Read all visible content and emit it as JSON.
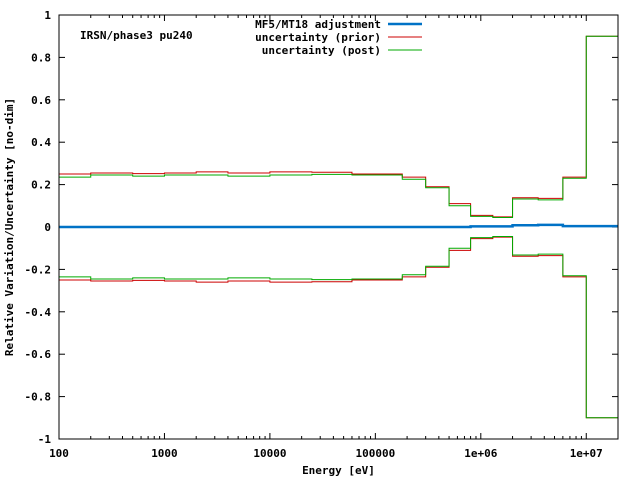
{
  "chart_data": {
    "type": "line",
    "step": true,
    "annotation": "IRSN/phase3 pu240",
    "xlabel": "Energy [eV]",
    "ylabel": "Relative Variation/Uncertainty [no-dim]",
    "xscale": "log",
    "xlim": [
      100,
      20000000
    ],
    "ylim": [
      -1,
      1
    ],
    "x_ticks": [
      {
        "value": 100,
        "label": "100"
      },
      {
        "value": 1000,
        "label": "1000"
      },
      {
        "value": 10000,
        "label": "10000"
      },
      {
        "value": 100000,
        "label": "100000"
      },
      {
        "value": 1000000,
        "label": "1e+06"
      },
      {
        "value": 10000000,
        "label": "1e+07"
      }
    ],
    "y_ticks": [
      {
        "value": 1,
        "label": "1"
      },
      {
        "value": 0.8,
        "label": "0.8"
      },
      {
        "value": 0.6,
        "label": "0.6"
      },
      {
        "value": 0.4,
        "label": "0.4"
      },
      {
        "value": 0.2,
        "label": "0.2"
      },
      {
        "value": 0,
        "label": "0"
      },
      {
        "value": -0.2,
        "label": "-0.2"
      },
      {
        "value": -0.4,
        "label": "-0.4"
      },
      {
        "value": -0.6,
        "label": "-0.6"
      },
      {
        "value": -0.8,
        "label": "-0.8"
      },
      {
        "value": -1,
        "label": "-1"
      }
    ],
    "legend_position": "top-center",
    "bin_edges": [
      100,
      200,
      500,
      1000,
      2000,
      4000,
      10000,
      25000,
      60000,
      180000,
      300000,
      500000,
      800000,
      1300000,
      2000000,
      3500000,
      6000000,
      10000000,
      20000000
    ],
    "series": [
      {
        "name": "MF5/MT18 adjustment",
        "color": "#0072c6",
        "values": [
          0,
          0,
          0,
          0,
          0,
          0,
          0,
          0,
          0,
          0,
          0,
          0,
          0.003,
          0.003,
          0.008,
          0.01,
          0.004,
          0.004
        ]
      },
      {
        "name": "uncertainty (prior)",
        "color": "#cc0000",
        "symmetric": true,
        "values": [
          0.25,
          0.255,
          0.252,
          0.255,
          0.26,
          0.255,
          0.26,
          0.258,
          0.25,
          0.235,
          0.19,
          0.11,
          0.055,
          0.048,
          0.138,
          0.135,
          0.235,
          0.9
        ]
      },
      {
        "name": "uncertainty (post)",
        "color": "#00aa00",
        "symmetric": true,
        "values": [
          0.235,
          0.245,
          0.24,
          0.245,
          0.245,
          0.24,
          0.245,
          0.248,
          0.245,
          0.225,
          0.185,
          0.1,
          0.05,
          0.045,
          0.132,
          0.128,
          0.23,
          0.9
        ]
      }
    ]
  }
}
